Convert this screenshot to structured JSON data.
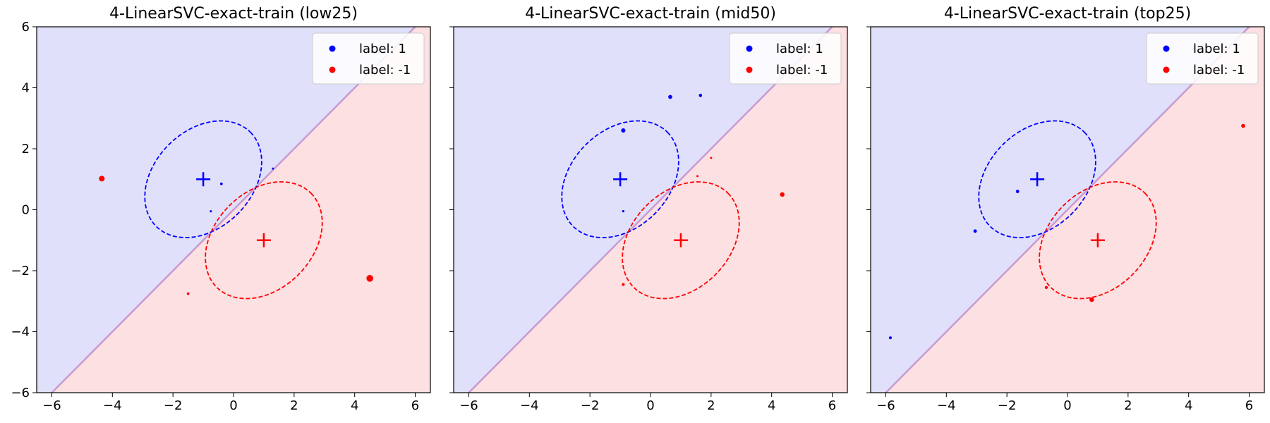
{
  "chart_data": [
    {
      "type": "scatter",
      "title": "4-LinearSVC-exact-train (low25)",
      "xlim": [
        -6.5,
        6.5
      ],
      "ylim": [
        -6,
        6
      ],
      "xticks": [
        -6,
        -4,
        -2,
        0,
        2,
        4,
        6
      ],
      "yticks": [
        -6,
        -4,
        -2,
        0,
        2,
        4,
        6
      ],
      "xtick_labels": [
        "−6",
        "−4",
        "−2",
        "0",
        "2",
        "4",
        "6"
      ],
      "ytick_labels": [
        "−6",
        "−4",
        "−2",
        "0",
        "2",
        "4",
        "6"
      ],
      "show_y_tick_labels": true,
      "grid": false,
      "legend_position": "top-right",
      "decision_boundary": "y = x",
      "region_colors": {
        "label_1": "#e0e0fa",
        "label_-1": "#fde0e2"
      },
      "boundary_color": "#c89ad2",
      "series": [
        {
          "name": "label: 1",
          "color": "#0000ff",
          "points": [
            [
              -0.4,
              0.85
            ],
            [
              -0.75,
              -0.05
            ],
            [
              1.3,
              1.35
            ]
          ]
        },
        {
          "name": "label: -1",
          "color": "#ff0000",
          "points": [
            [
              -4.35,
              1.02
            ],
            [
              -1.5,
              -2.75
            ],
            [
              4.5,
              -2.25
            ]
          ]
        }
      ],
      "class_centers": [
        {
          "x": -1,
          "y": 1,
          "color": "#0000ff"
        },
        {
          "x": 1,
          "y": -1,
          "color": "#ff0000"
        }
      ],
      "ellipses": [
        {
          "cx": -1,
          "cy": 1,
          "rx": 2.2,
          "ry": 1.6,
          "angle": 45,
          "color": "#0000ff"
        },
        {
          "cx": 1,
          "cy": -1,
          "rx": 2.2,
          "ry": 1.6,
          "angle": 45,
          "color": "#ff0000"
        }
      ]
    },
    {
      "type": "scatter",
      "title": "4-LinearSVC-exact-train (mid50)",
      "xlim": [
        -6.5,
        6.5
      ],
      "ylim": [
        -6,
        6
      ],
      "xticks": [
        -6,
        -4,
        -2,
        0,
        2,
        4,
        6
      ],
      "yticks": [
        -6,
        -4,
        -2,
        0,
        2,
        4,
        6
      ],
      "xtick_labels": [
        "−6",
        "−4",
        "−2",
        "0",
        "2",
        "4",
        "6"
      ],
      "ytick_labels": [
        "−6",
        "−4",
        "−2",
        "0",
        "2",
        "4",
        "6"
      ],
      "show_y_tick_labels": false,
      "grid": false,
      "legend_position": "top-right",
      "decision_boundary": "y = x",
      "region_colors": {
        "label_1": "#e0e0fa",
        "label_-1": "#fde0e2"
      },
      "boundary_color": "#c89ad2",
      "series": [
        {
          "name": "label: 1",
          "color": "#0000ff",
          "points": [
            [
              0.65,
              3.7
            ],
            [
              1.65,
              3.75
            ],
            [
              -0.9,
              2.6
            ],
            [
              -0.9,
              -0.05
            ]
          ]
        },
        {
          "name": "label: -1",
          "color": "#ff0000",
          "points": [
            [
              2.0,
              1.7
            ],
            [
              1.55,
              1.1
            ],
            [
              4.35,
              0.5
            ],
            [
              -0.9,
              -2.45
            ]
          ]
        }
      ],
      "class_centers": [
        {
          "x": -1,
          "y": 1,
          "color": "#0000ff"
        },
        {
          "x": 1,
          "y": -1,
          "color": "#ff0000"
        }
      ],
      "ellipses": [
        {
          "cx": -1,
          "cy": 1,
          "rx": 2.2,
          "ry": 1.6,
          "angle": 45,
          "color": "#0000ff"
        },
        {
          "cx": 1,
          "cy": -1,
          "rx": 2.2,
          "ry": 1.6,
          "angle": 45,
          "color": "#ff0000"
        }
      ]
    },
    {
      "type": "scatter",
      "title": "4-LinearSVC-exact-train (top25)",
      "xlim": [
        -6.5,
        6.5
      ],
      "ylim": [
        -6,
        6
      ],
      "xticks": [
        -6,
        -4,
        -2,
        0,
        2,
        4,
        6
      ],
      "yticks": [
        -6,
        -4,
        -2,
        0,
        2,
        4,
        6
      ],
      "xtick_labels": [
        "−6",
        "−4",
        "−2",
        "0",
        "2",
        "4",
        "6"
      ],
      "ytick_labels": [
        "−6",
        "−4",
        "−2",
        "0",
        "2",
        "4",
        "6"
      ],
      "show_y_tick_labels": false,
      "grid": false,
      "legend_position": "top-right",
      "decision_boundary": "y = x",
      "region_colors": {
        "label_1": "#e0e0fa",
        "label_-1": "#fde0e2"
      },
      "boundary_color": "#c89ad2",
      "series": [
        {
          "name": "label: 1",
          "color": "#0000ff",
          "points": [
            [
              -1.65,
              0.6
            ],
            [
              -3.05,
              -0.7
            ],
            [
              -5.85,
              -4.2
            ]
          ]
        },
        {
          "name": "label: -1",
          "color": "#ff0000",
          "points": [
            [
              5.8,
              2.75
            ],
            [
              -0.7,
              -2.55
            ],
            [
              0.8,
              -2.95
            ]
          ]
        }
      ],
      "class_centers": [
        {
          "x": -1,
          "y": 1,
          "color": "#0000ff"
        },
        {
          "x": 1,
          "y": -1,
          "color": "#ff0000"
        }
      ],
      "ellipses": [
        {
          "cx": -1,
          "cy": 1,
          "rx": 2.2,
          "ry": 1.6,
          "angle": 45,
          "color": "#0000ff"
        },
        {
          "cx": 1,
          "cy": -1,
          "rx": 2.2,
          "ry": 1.6,
          "angle": 45,
          "color": "#ff0000"
        }
      ]
    }
  ]
}
